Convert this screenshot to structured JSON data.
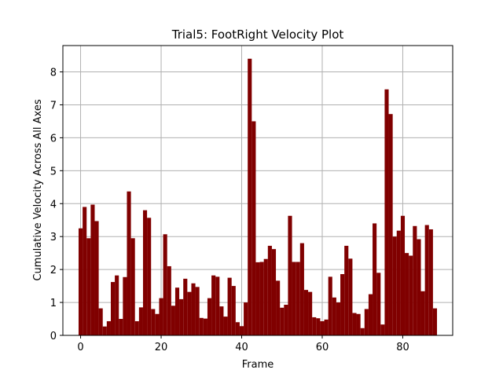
{
  "chart_data": {
    "type": "bar",
    "title": "Trial5: FootRight Velocity Plot",
    "xlabel": "Frame",
    "ylabel": "Cumulative Velocity Across All Axes",
    "xlim": [
      -4.4,
      92.4
    ],
    "ylim": [
      0,
      8.8
    ],
    "xticks": [
      0,
      20,
      40,
      60,
      80
    ],
    "yticks": [
      0,
      1,
      2,
      3,
      4,
      5,
      6,
      7,
      8
    ],
    "grid": true,
    "bar_color": "#800000",
    "x": [
      0,
      1,
      2,
      3,
      4,
      5,
      6,
      7,
      8,
      9,
      10,
      11,
      12,
      13,
      14,
      15,
      16,
      17,
      18,
      19,
      20,
      21,
      22,
      23,
      24,
      25,
      26,
      27,
      28,
      29,
      30,
      31,
      32,
      33,
      34,
      35,
      36,
      37,
      38,
      39,
      40,
      41,
      42,
      43,
      44,
      45,
      46,
      47,
      48,
      49,
      50,
      51,
      52,
      53,
      54,
      55,
      56,
      57,
      58,
      59,
      60,
      61,
      62,
      63,
      64,
      65,
      66,
      67,
      68,
      69,
      70,
      71,
      72,
      73,
      74,
      75,
      76,
      77,
      78,
      79,
      80,
      81,
      82,
      83,
      84,
      85,
      86,
      87,
      88
    ],
    "values": [
      3.25,
      3.9,
      2.95,
      3.97,
      3.47,
      0.82,
      0.27,
      0.43,
      1.62,
      1.82,
      0.5,
      1.77,
      4.37,
      2.95,
      0.43,
      0.85,
      3.8,
      3.57,
      0.8,
      0.65,
      1.13,
      3.07,
      2.1,
      0.9,
      1.45,
      1.1,
      1.72,
      1.32,
      1.58,
      1.47,
      0.53,
      0.51,
      1.13,
      1.82,
      1.78,
      0.88,
      0.57,
      1.75,
      1.5,
      0.4,
      0.28,
      1.0,
      8.4,
      6.5,
      2.22,
      2.23,
      2.32,
      2.72,
      2.62,
      1.66,
      0.84,
      0.93,
      3.63,
      2.23,
      2.23,
      2.8,
      1.38,
      1.32,
      0.55,
      0.52,
      0.43,
      0.48,
      1.78,
      1.15,
      1.0,
      1.86,
      2.72,
      2.33,
      0.68,
      0.65,
      0.22,
      0.8,
      1.25,
      3.4,
      1.9,
      0.33,
      7.47,
      6.72,
      3.0,
      3.18,
      3.63,
      2.5,
      2.42,
      3.32,
      2.92,
      1.34,
      3.35,
      3.22,
      0.82
    ]
  }
}
